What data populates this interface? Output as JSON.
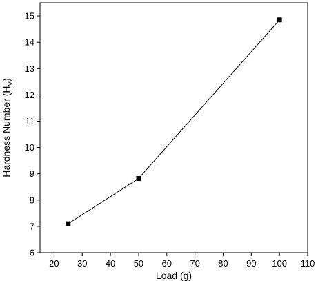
{
  "chart_data": {
    "type": "line",
    "xlabel": "Load (g)",
    "ylabel_main": "Hardness Number (H",
    "ylabel_sub": "V",
    "ylabel_close": ")",
    "xlim": [
      15,
      110
    ],
    "ylim": [
      6,
      15.5
    ],
    "xticks": [
      20,
      30,
      40,
      50,
      60,
      70,
      80,
      90,
      100,
      110
    ],
    "yticks": [
      6,
      7,
      8,
      9,
      10,
      11,
      12,
      13,
      14,
      15
    ],
    "grid": false,
    "series": [
      {
        "marker": "square",
        "color": "#000000",
        "x": [
          25,
          50,
          100
        ],
        "y": [
          7.1,
          8.82,
          14.85
        ]
      }
    ]
  }
}
